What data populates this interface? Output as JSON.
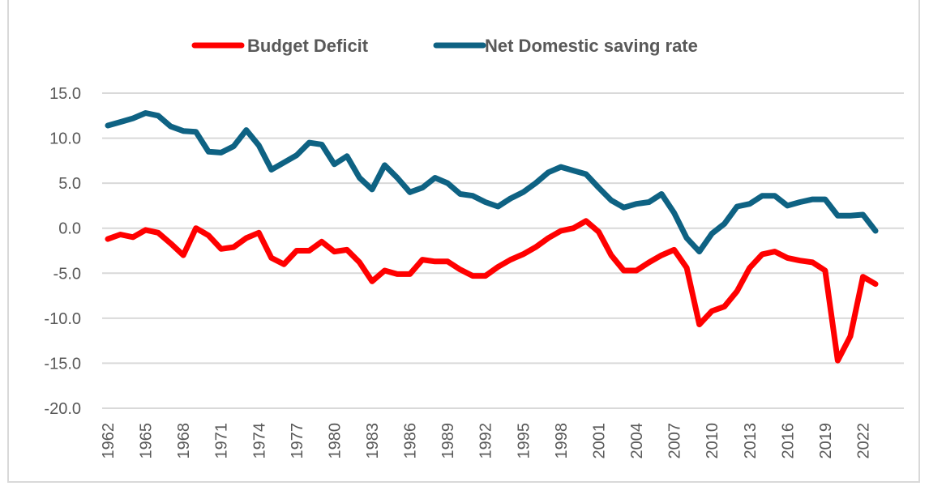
{
  "chart_data": {
    "type": "line",
    "title": "",
    "xlabel": "",
    "ylabel": "",
    "ylim": [
      -20,
      15
    ],
    "yticks": [
      "15.0",
      "10.0",
      "5.0",
      "0.0",
      "-5.0",
      "-10.0",
      "-15.0",
      "-20.0"
    ],
    "ytick_values": [
      15,
      10,
      5,
      0,
      -5,
      -10,
      -15,
      -20
    ],
    "grid": true,
    "legend_position": "top-center",
    "x": [
      1962,
      1963,
      1964,
      1965,
      1966,
      1967,
      1968,
      1969,
      1970,
      1971,
      1972,
      1973,
      1974,
      1975,
      1976,
      1977,
      1978,
      1979,
      1980,
      1981,
      1982,
      1983,
      1984,
      1985,
      1986,
      1987,
      1988,
      1989,
      1990,
      1991,
      1992,
      1993,
      1994,
      1995,
      1996,
      1997,
      1998,
      1999,
      2000,
      2001,
      2002,
      2003,
      2004,
      2005,
      2006,
      2007,
      2008,
      2009,
      2010,
      2011,
      2012,
      2013,
      2014,
      2015,
      2016,
      2017,
      2018,
      2019,
      2020,
      2021,
      2022,
      2023
    ],
    "xticks": [
      "1962",
      "1965",
      "1968",
      "1971",
      "1974",
      "1977",
      "1980",
      "1983",
      "1986",
      "1989",
      "1992",
      "1995",
      "1998",
      "2001",
      "2004",
      "2007",
      "2010",
      "2013",
      "2016",
      "2019",
      "2022"
    ],
    "series": [
      {
        "name": "Budget Deficit",
        "color": "#ff0000",
        "values": [
          -1.2,
          -0.7,
          -1.0,
          -0.2,
          -0.5,
          -1.7,
          -3.0,
          0.0,
          -0.8,
          -2.3,
          -2.1,
          -1.1,
          -0.5,
          -3.3,
          -4.0,
          -2.5,
          -2.5,
          -1.5,
          -2.6,
          -2.4,
          -3.8,
          -5.9,
          -4.7,
          -5.1,
          -5.1,
          -3.5,
          -3.7,
          -3.7,
          -4.6,
          -5.3,
          -5.3,
          -4.3,
          -3.5,
          -2.9,
          -2.1,
          -1.1,
          -0.3,
          0.0,
          0.8,
          -0.4,
          -3.0,
          -4.7,
          -4.7,
          -3.8,
          -3.0,
          -2.4,
          -4.4,
          -10.7,
          -9.2,
          -8.7,
          -7.0,
          -4.4,
          -2.9,
          -2.6,
          -3.3,
          -3.6,
          -3.8,
          -4.7,
          -14.7,
          -12.0,
          -5.4,
          -6.2
        ]
      },
      {
        "name": "Net Domestic saving rate",
        "color": "#0e6283",
        "values": [
          11.4,
          11.8,
          12.2,
          12.8,
          12.5,
          11.3,
          10.8,
          10.7,
          8.5,
          8.4,
          9.1,
          10.9,
          9.2,
          6.5,
          7.3,
          8.1,
          9.5,
          9.3,
          7.1,
          8.0,
          5.6,
          4.3,
          7.0,
          5.6,
          4.0,
          4.5,
          5.6,
          5.0,
          3.8,
          3.6,
          2.9,
          2.4,
          3.3,
          4.0,
          5.0,
          6.2,
          6.8,
          6.4,
          6.0,
          4.5,
          3.1,
          2.3,
          2.7,
          2.9,
          3.8,
          1.7,
          -1.1,
          -2.6,
          -0.6,
          0.5,
          2.4,
          2.7,
          3.6,
          3.6,
          2.5,
          2.9,
          3.2,
          3.2,
          1.4,
          1.4,
          1.5,
          -0.3
        ]
      }
    ]
  }
}
